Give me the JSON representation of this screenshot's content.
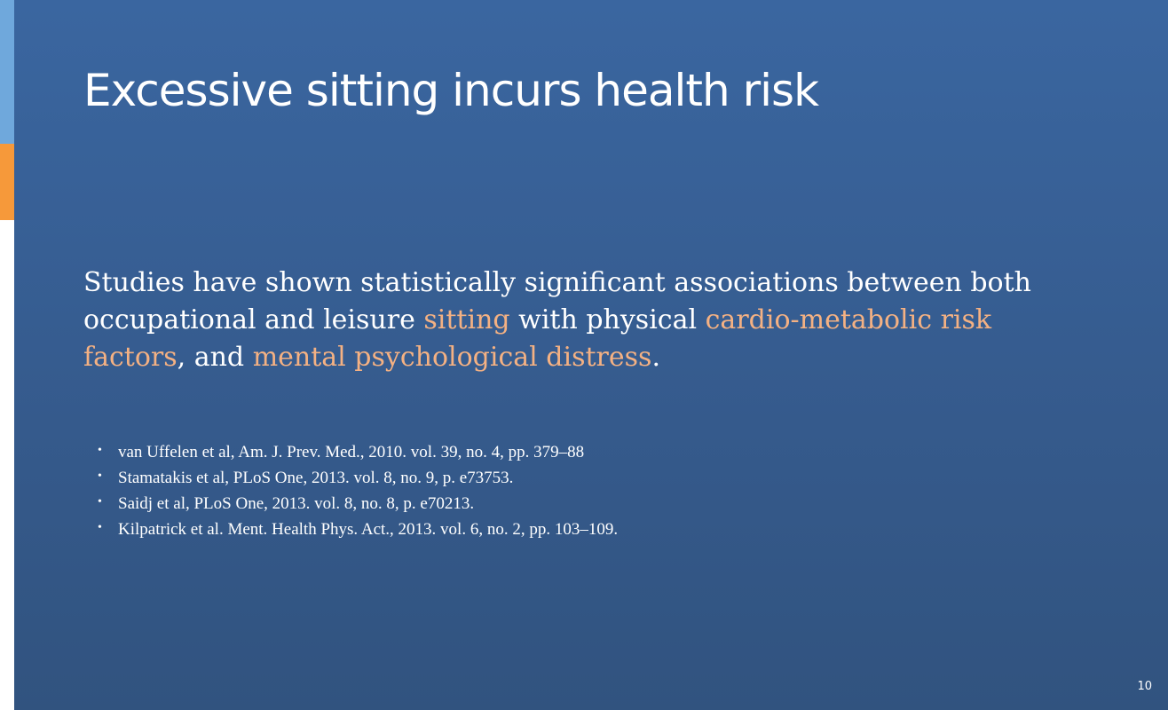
{
  "slide": {
    "title": "Excessive sitting incurs health risk",
    "statement": {
      "part1": "Studies have shown statistically significant associations between both occupational and leisure ",
      "highlight1": "sitting",
      "part2": " with physical ",
      "highlight2": "cardio-metabolic risk factors",
      "part3": ", and ",
      "highlight3": "mental psychological distress",
      "part4": "."
    },
    "bullet": "•",
    "references": [
      "van Uffelen et al, Am. J. Prev. Med., 2010. vol. 39, no. 4, pp. 379–88",
      "Stamatakis et al, PLoS One, 2013. vol. 8, no. 9, p. e73753.",
      "Saidj et al, PLoS One, 2013. vol. 8, no. 8, p. e70213.",
      "Kilpatrick et al. Ment. Health Phys. Act., 2013. vol. 6, no. 2, pp. 103–109."
    ],
    "page_number": "10"
  },
  "colors": {
    "background": "#355d93",
    "text": "#ffffff",
    "highlight": "#f4b183",
    "accent_blue": "#6fa8dc",
    "accent_orange": "#f6993a"
  }
}
